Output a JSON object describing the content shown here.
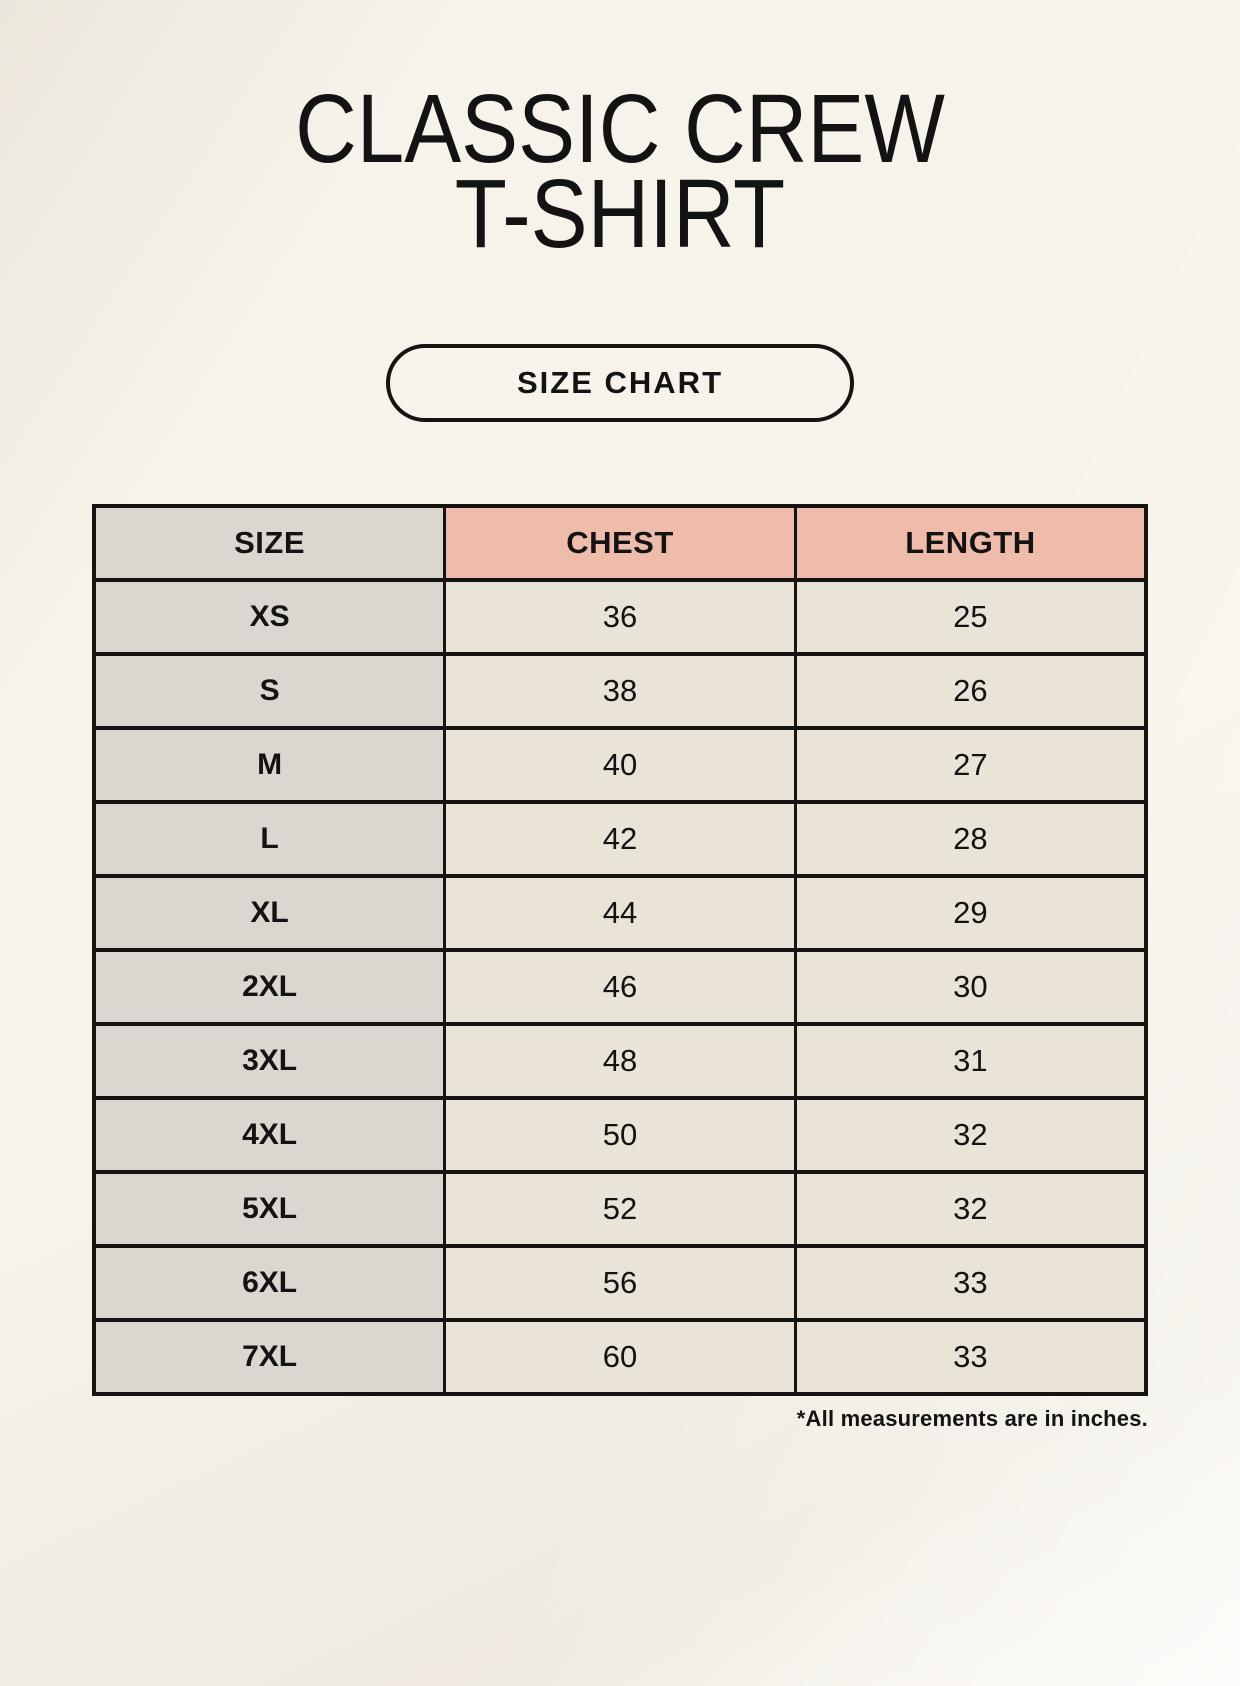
{
  "header": {
    "title_line1": "CLASSIC CREW",
    "title_line2": "T-SHIRT",
    "size_chart_label": "SIZE CHART"
  },
  "footnote": "*All measurements are in inches.",
  "colors": {
    "page-bg": "#f7f3ea",
    "accent": "#efbcab",
    "size-col": "#dcd6d0",
    "cell-bg": "#eae3d8",
    "border": "#161412",
    "text": "#131313"
  },
  "chart_data": {
    "type": "table",
    "columns": [
      "SIZE",
      "CHEST",
      "LENGTH"
    ],
    "rows": [
      [
        "XS",
        "36",
        "25"
      ],
      [
        "S",
        "38",
        "26"
      ],
      [
        "M",
        "40",
        "27"
      ],
      [
        "L",
        "42",
        "28"
      ],
      [
        "XL",
        "44",
        "29"
      ],
      [
        "2XL",
        "46",
        "30"
      ],
      [
        "3XL",
        "48",
        "31"
      ],
      [
        "4XL",
        "50",
        "32"
      ],
      [
        "5XL",
        "52",
        "32"
      ],
      [
        "6XL",
        "56",
        "33"
      ],
      [
        "7XL",
        "60",
        "33"
      ]
    ]
  }
}
